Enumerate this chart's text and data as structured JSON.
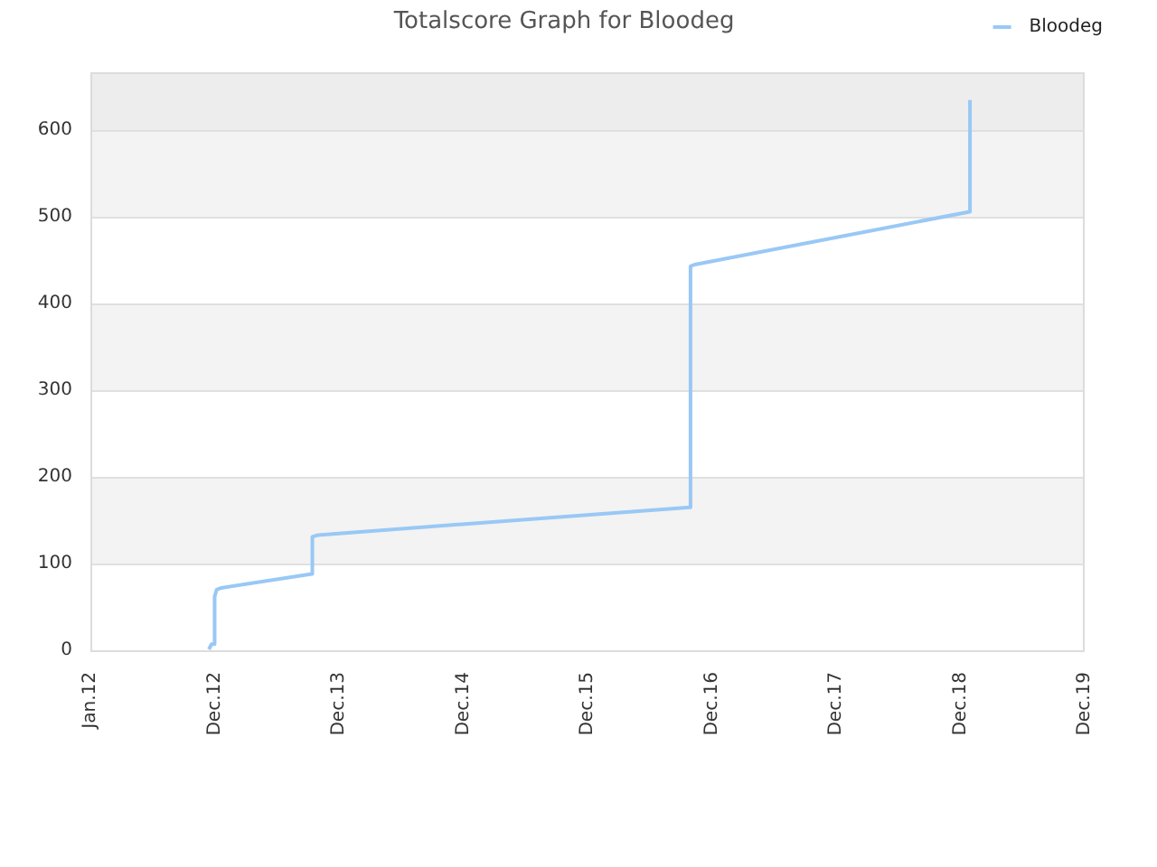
{
  "chart_data": {
    "type": "line",
    "title": "Totalscore Graph for Bloodeg",
    "x": [
      "2012-12-14",
      "2012-12-22",
      "2012-12-30",
      "2012-12-31",
      "2013-01-06",
      "2013-01-20",
      "2013-10-13",
      "2013-10-14",
      "2013-10-31",
      "2016-10-28",
      "2016-10-29",
      "2016-11-10",
      "2019-01-27",
      "2019-01-28"
    ],
    "series": [
      {
        "name": "Bloodeg",
        "color": "#99c8f5",
        "values": [
          1,
          7,
          7,
          62,
          70,
          72,
          88,
          131,
          133,
          165,
          443,
          445,
          506,
          635
        ]
      }
    ],
    "xlim": [
      "2012-01-01",
      "2019-12-31"
    ],
    "xticks": [
      {
        "value": "2012-01-01",
        "label": "Jan.12"
      },
      {
        "value": "2012-12-31",
        "label": "Dec.12"
      },
      {
        "value": "2013-12-31",
        "label": "Dec.13"
      },
      {
        "value": "2014-12-31",
        "label": "Dec.14"
      },
      {
        "value": "2015-12-31",
        "label": "Dec.15"
      },
      {
        "value": "2016-12-31",
        "label": "Dec.16"
      },
      {
        "value": "2017-12-31",
        "label": "Dec.17"
      },
      {
        "value": "2018-12-31",
        "label": "Dec.18"
      },
      {
        "value": "2019-12-31",
        "label": "Dec.19"
      }
    ],
    "ylim": [
      0,
      667
    ],
    "yticks": [
      0,
      100,
      200,
      300,
      400,
      500,
      600
    ],
    "grid": "y",
    "legend": "top right",
    "bands": [
      {
        "axis": "y",
        "from": 100,
        "to": 200,
        "color": "#f3f3f3"
      },
      {
        "axis": "y",
        "from": 300,
        "to": 400,
        "color": "#f3f3f3"
      },
      {
        "axis": "y",
        "from": 500,
        "to": 600,
        "color": "#f3f3f3"
      },
      {
        "axis": "y",
        "from": 600,
        "to": 667,
        "color": "#ededed"
      }
    ]
  }
}
